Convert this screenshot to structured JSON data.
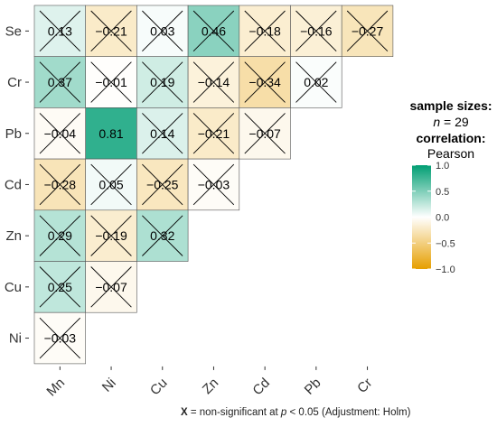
{
  "chart_data": {
    "type": "heatmap",
    "title": "",
    "x_categories": [
      "Mn",
      "Ni",
      "Cu",
      "Zn",
      "Cd",
      "Pb",
      "Cr"
    ],
    "y_categories": [
      "Se",
      "Cr",
      "Pb",
      "Cd",
      "Zn",
      "Cu",
      "Ni"
    ],
    "cells": [
      {
        "row": "Se",
        "col": "Mn",
        "value": 0.13,
        "label": "0.13",
        "significant": false
      },
      {
        "row": "Se",
        "col": "Ni",
        "value": -0.21,
        "label": "−0.21",
        "significant": false
      },
      {
        "row": "Se",
        "col": "Cu",
        "value": 0.03,
        "label": "0.03",
        "significant": false
      },
      {
        "row": "Se",
        "col": "Zn",
        "value": 0.46,
        "label": "0.46",
        "significant": false
      },
      {
        "row": "Se",
        "col": "Cd",
        "value": -0.18,
        "label": "−0.18",
        "significant": false
      },
      {
        "row": "Se",
        "col": "Pb",
        "value": -0.16,
        "label": "−0.16",
        "significant": false
      },
      {
        "row": "Se",
        "col": "Cr",
        "value": -0.27,
        "label": "−0.27",
        "significant": false
      },
      {
        "row": "Cr",
        "col": "Mn",
        "value": 0.37,
        "label": "0.37",
        "significant": false
      },
      {
        "row": "Cr",
        "col": "Ni",
        "value": -0.01,
        "label": "−0.01",
        "significant": false
      },
      {
        "row": "Cr",
        "col": "Cu",
        "value": 0.19,
        "label": "0.19",
        "significant": false
      },
      {
        "row": "Cr",
        "col": "Zn",
        "value": -0.14,
        "label": "−0.14",
        "significant": false
      },
      {
        "row": "Cr",
        "col": "Cd",
        "value": -0.34,
        "label": "−0.34",
        "significant": false
      },
      {
        "row": "Cr",
        "col": "Pb",
        "value": 0.02,
        "label": "0.02",
        "significant": false
      },
      {
        "row": "Pb",
        "col": "Mn",
        "value": -0.04,
        "label": "−0.04",
        "significant": false
      },
      {
        "row": "Pb",
        "col": "Ni",
        "value": 0.81,
        "label": "0.81",
        "significant": true
      },
      {
        "row": "Pb",
        "col": "Cu",
        "value": 0.14,
        "label": "0.14",
        "significant": false
      },
      {
        "row": "Pb",
        "col": "Zn",
        "value": -0.21,
        "label": "−0.21",
        "significant": false
      },
      {
        "row": "Pb",
        "col": "Cd",
        "value": -0.07,
        "label": "−0.07",
        "significant": false
      },
      {
        "row": "Cd",
        "col": "Mn",
        "value": -0.28,
        "label": "−0.28",
        "significant": false
      },
      {
        "row": "Cd",
        "col": "Ni",
        "value": 0.05,
        "label": "0.05",
        "significant": false
      },
      {
        "row": "Cd",
        "col": "Cu",
        "value": -0.25,
        "label": "−0.25",
        "significant": false
      },
      {
        "row": "Cd",
        "col": "Zn",
        "value": -0.03,
        "label": "−0.03",
        "significant": false
      },
      {
        "row": "Zn",
        "col": "Mn",
        "value": 0.29,
        "label": "0.29",
        "significant": false
      },
      {
        "row": "Zn",
        "col": "Ni",
        "value": -0.19,
        "label": "−0.19",
        "significant": false
      },
      {
        "row": "Zn",
        "col": "Cu",
        "value": 0.32,
        "label": "0.32",
        "significant": false
      },
      {
        "row": "Cu",
        "col": "Mn",
        "value": 0.25,
        "label": "0.25",
        "significant": false
      },
      {
        "row": "Cu",
        "col": "Ni",
        "value": -0.07,
        "label": "−0.07",
        "significant": false
      },
      {
        "row": "Ni",
        "col": "Mn",
        "value": -0.03,
        "label": "−0.03",
        "significant": false
      }
    ],
    "color_scale": {
      "low": "#e69f00",
      "mid": "#ffffff",
      "high": "#009e73",
      "min": -1.0,
      "max": 1.0
    },
    "legend": {
      "placement": "right",
      "sample_title": "sample sizes:",
      "n_label": "n",
      "n_rest": " = 29",
      "corr_title": "correlation:",
      "corr_method": "Pearson",
      "ticks": [
        1.0,
        0.5,
        0.0,
        -0.5,
        -1.0
      ],
      "tick_labels": [
        "1.0",
        "0.5",
        "0.0",
        "−0.5",
        "−1.0"
      ]
    },
    "footnote": {
      "symbol": "X",
      "text_a": " = non-significant at ",
      "p_label": "p",
      "text_b": " < 0.05 (Adjustment: Holm)"
    }
  }
}
